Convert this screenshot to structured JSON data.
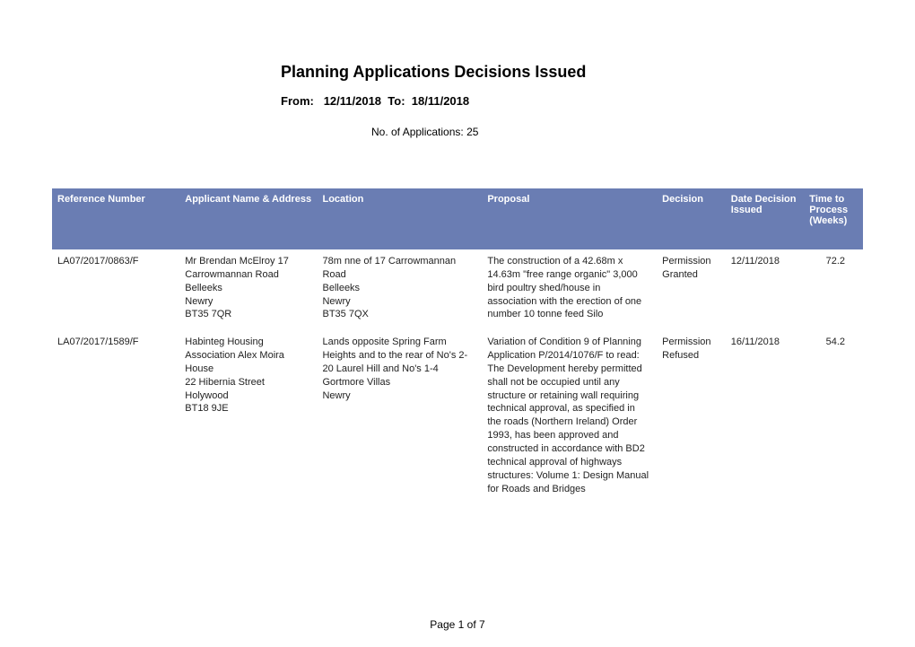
{
  "header": {
    "title": "Planning Applications Decisions Issued",
    "from_label": "From:",
    "from_date": "12/11/2018",
    "to_label": "To:",
    "to_date": "18/11/2018",
    "count_label": "No. of Applications:",
    "count_value": "25"
  },
  "columns": {
    "ref": "Reference Number",
    "applicant": "Applicant Name & Address",
    "location": "Location",
    "proposal": "Proposal",
    "decision": "Decision",
    "date": "Date Decision Issued",
    "time": "Time to Process (Weeks)"
  },
  "rows": [
    {
      "ref": "LA07/2017/0863/F",
      "applicant": "Mr Brendan McElroy   17 Carrowmannan Road\n Belleeks\n Newry\n BT35 7QR",
      "location": "78m nne of 17 Carrowmannan Road\n Belleeks\n Newry\n BT35 7QX",
      "proposal": "The construction of a 42.68m x 14.63m \"free range organic\" 3,000 bird poultry shed/house in association with the erection of one number 10 tonne feed Silo",
      "decision": "Permission Granted",
      "date": "12/11/2018",
      "time": "72.2"
    },
    {
      "ref": "LA07/2017/1589/F",
      "applicant": "Habinteg Housing Association   Alex Moira House\n22 Hibernia Street\n Holywood\n BT18 9JE",
      "location": "Lands opposite Spring Farm Heights and to the rear of No's 2-20 Laurel Hill and No's 1-4 Gortmore Villas\n Newry",
      "proposal": "Variation of Condition 9 of Planning Application P/2014/1076/F to read: The Development hereby permitted shall not be occupied until any structure or retaining wall requiring technical approval, as specified in the roads (Northern Ireland) Order 1993, has been approved and constructed in accordance with BD2 technical approval of highways structures: Volume 1: Design Manual for Roads and Bridges",
      "decision": "Permission Refused",
      "date": "16/11/2018",
      "time": "54.2"
    }
  ],
  "footer": {
    "page": "Page 1 of 7"
  },
  "style": {
    "header_bg": "#6a7db3",
    "header_fg": "#ffffff",
    "body_fg": "#222222",
    "font_family": "Arial",
    "title_fontsize": 18,
    "body_fontsize": 11
  }
}
